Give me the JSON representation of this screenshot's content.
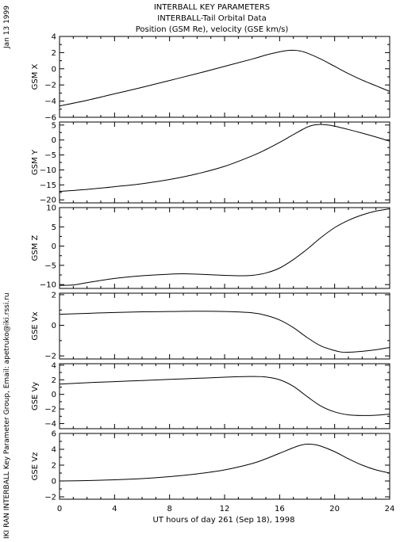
{
  "header": {
    "title_lines": [
      "INTERBALL KEY PARAMETERS",
      "INTERBALL-Tail Orbital Data",
      "Position (GSM Re), velocity (GSE km/s)"
    ],
    "date_stamp": "Jan 13 1999",
    "credit": "IKI RAN INTERBALL Key Parameter Group, Email: apetruko@iki.rssi.ru"
  },
  "chart_data": {
    "type": "line",
    "xlabel": "UT hours of day 261 (Sep 18), 1998",
    "xlim": [
      0,
      24
    ],
    "xticks": [
      0,
      4,
      8,
      12,
      16,
      20,
      24
    ],
    "colors": {
      "line": "#000000",
      "axis": "#000000",
      "background": "#ffffff"
    },
    "panels": [
      {
        "ylabel": "GSM X",
        "ylim": [
          -6,
          4
        ],
        "yticks": [
          -6,
          -4,
          -2,
          0,
          2,
          4
        ],
        "x": [
          0,
          2,
          4,
          6,
          8,
          10,
          12,
          14,
          15,
          16,
          16.5,
          17,
          17.5,
          18,
          19,
          20,
          21,
          22,
          23,
          24
        ],
        "y": [
          -4.6,
          -3.9,
          -3.1,
          -2.3,
          -1.45,
          -0.6,
          0.3,
          1.2,
          1.7,
          2.1,
          2.25,
          2.3,
          2.2,
          1.95,
          1.2,
          0.3,
          -0.6,
          -1.4,
          -2.1,
          -2.8
        ]
      },
      {
        "ylabel": "GSM Y",
        "ylim": [
          -21,
          6
        ],
        "yticks": [
          -20,
          -15,
          -10,
          -5,
          0,
          5
        ],
        "x": [
          0,
          2,
          4,
          6,
          8,
          10,
          12,
          14,
          15,
          16,
          17,
          18,
          18.5,
          19,
          19.5,
          20,
          21,
          22,
          23,
          24
        ],
        "y": [
          -17.2,
          -16.5,
          -15.6,
          -14.6,
          -13.2,
          -11.3,
          -8.8,
          -5.3,
          -3.2,
          -0.8,
          1.8,
          4.3,
          5.0,
          5.2,
          5.0,
          4.6,
          3.5,
          2.3,
          1.0,
          -0.4
        ]
      },
      {
        "ylabel": "GSM Z",
        "ylim": [
          -11,
          10
        ],
        "yticks": [
          -10,
          -5,
          0,
          5,
          10
        ],
        "x": [
          0,
          1,
          2,
          4,
          6,
          8,
          9,
          10,
          12,
          13,
          14,
          15,
          16,
          17,
          18,
          19,
          20,
          21,
          22,
          23,
          24
        ],
        "y": [
          -10.2,
          -10.1,
          -9.5,
          -8.4,
          -7.7,
          -7.3,
          -7.2,
          -7.3,
          -7.6,
          -7.7,
          -7.6,
          -7.0,
          -5.7,
          -3.5,
          -0.8,
          2.2,
          4.8,
          6.7,
          8.1,
          9.1,
          9.7
        ]
      },
      {
        "ylabel": "GSE Vx",
        "ylim": [
          -2.2,
          2.1
        ],
        "yticks": [
          -2,
          0,
          2
        ],
        "x": [
          0,
          2,
          4,
          6,
          8,
          10,
          12,
          14,
          15,
          16,
          17,
          18,
          19,
          20,
          20.5,
          21,
          22,
          23,
          24
        ],
        "y": [
          0.72,
          0.78,
          0.84,
          0.88,
          0.9,
          0.92,
          0.9,
          0.82,
          0.65,
          0.35,
          -0.15,
          -0.8,
          -1.35,
          -1.65,
          -1.75,
          -1.76,
          -1.7,
          -1.6,
          -1.45
        ]
      },
      {
        "ylabel": "GSE Vy",
        "ylim": [
          -4.7,
          4.2
        ],
        "yticks": [
          -4,
          -2,
          0,
          2,
          4
        ],
        "x": [
          0,
          2,
          4,
          6,
          8,
          10,
          12,
          13,
          14,
          15,
          16,
          17,
          18,
          19,
          20,
          21,
          22,
          23,
          24
        ],
        "y": [
          1.4,
          1.6,
          1.75,
          1.9,
          2.05,
          2.2,
          2.35,
          2.42,
          2.45,
          2.38,
          2.0,
          1.1,
          -0.3,
          -1.6,
          -2.4,
          -2.8,
          -2.9,
          -2.85,
          -2.7
        ]
      },
      {
        "ylabel": "GSE Vz",
        "ylim": [
          -2.3,
          6
        ],
        "yticks": [
          -2,
          0,
          2,
          4,
          6
        ],
        "x": [
          0,
          2,
          4,
          6,
          8,
          10,
          12,
          14,
          15,
          16,
          17,
          17.5,
          18,
          18.5,
          19,
          20,
          21,
          22,
          23,
          24
        ],
        "y": [
          0.0,
          0.05,
          0.15,
          0.3,
          0.55,
          0.9,
          1.4,
          2.2,
          2.8,
          3.5,
          4.2,
          4.5,
          4.65,
          4.6,
          4.4,
          3.7,
          2.8,
          2.0,
          1.4,
          1.0
        ]
      }
    ]
  }
}
